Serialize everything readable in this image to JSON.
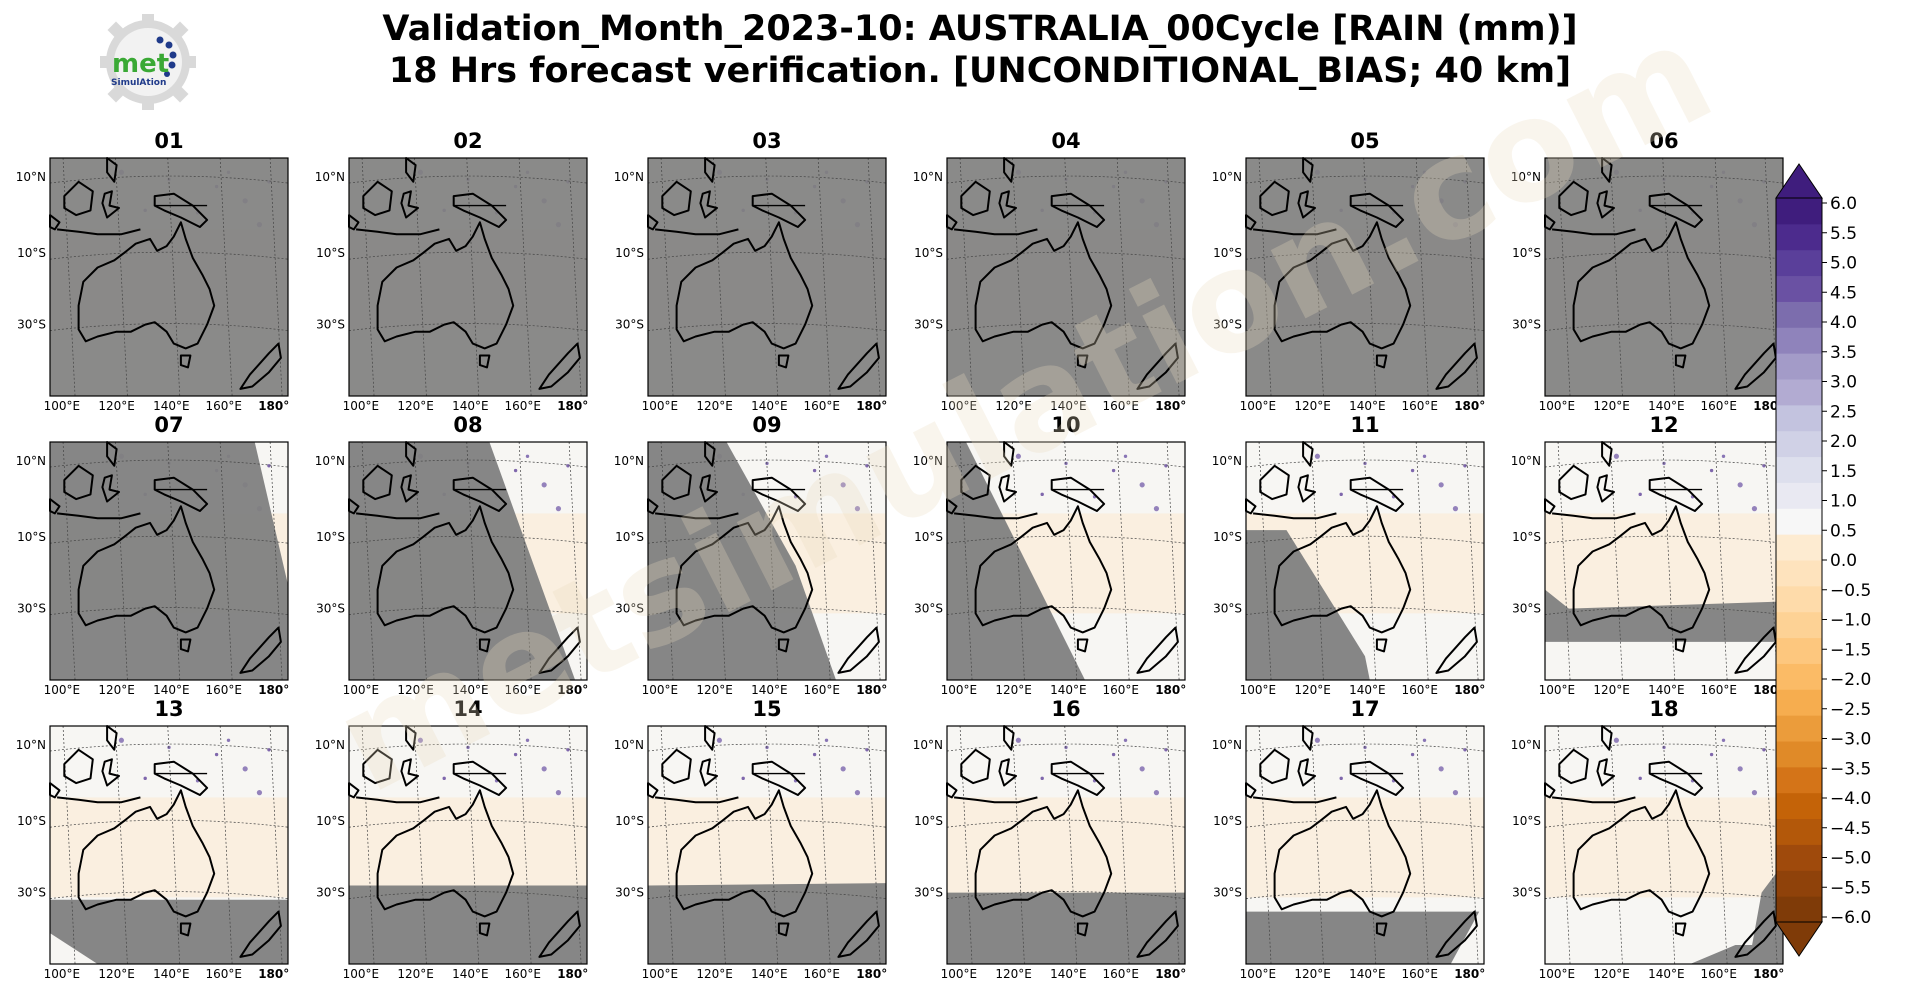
{
  "figure": {
    "title_line1": "Validation_Month_2023-10: AUSTRALIA_00Cycle [RAIN (mm)]",
    "title_line2": "18 Hrs forecast verification. [UNCONDITIONAL_BIAS; 40 km]",
    "logo_text": "met",
    "logo_subtext": "SimulAtion",
    "watermark": "metsimulation.com"
  },
  "colors": {
    "missing_gray": "#808080",
    "coast": "#000000",
    "grid": "#444444",
    "cmap": [
      "#7f3b08",
      "#8f420a",
      "#9f4a0c",
      "#b3580a",
      "#c46308",
      "#d47418",
      "#e08a28",
      "#eb9c3b",
      "#f6ad4f",
      "#fbbb66",
      "#fdc77e",
      "#fdd295",
      "#fedbaa",
      "#fee3bd",
      "#fdebd1",
      "#f7f7f7",
      "#e9e9f2",
      "#dddfed",
      "#d0d1e6",
      "#c3c3df",
      "#b2abd2",
      "#a39bc8",
      "#8f83bb",
      "#7c6dad",
      "#6a51a3",
      "#5a3f9a",
      "#4c2b8d",
      "#3f1d7d"
    ]
  },
  "chart_data": {
    "type": "heatmap",
    "variable": "RAIN (mm)",
    "score": "UNCONDITIONAL_BIAS",
    "resolution": "40 km",
    "panels": [
      {
        "label": "01",
        "day": 1,
        "missing_region": "full"
      },
      {
        "label": "02",
        "day": 2,
        "missing_region": "full"
      },
      {
        "label": "03",
        "day": 3,
        "missing_region": "full"
      },
      {
        "label": "04",
        "day": 4,
        "missing_region": "full"
      },
      {
        "label": "05",
        "day": 5,
        "missing_region": "full"
      },
      {
        "label": "06",
        "day": 6,
        "missing_region": "full"
      },
      {
        "label": "07",
        "day": 7,
        "missing_region": "all but east edge"
      },
      {
        "label": "08",
        "day": 8,
        "missing_region": "west of diagonal"
      },
      {
        "label": "09",
        "day": 9,
        "missing_region": "west of diagonal"
      },
      {
        "label": "10",
        "day": 10,
        "missing_region": "south-west triangle"
      },
      {
        "label": "11",
        "day": 11,
        "missing_region": "south-west triangle"
      },
      {
        "label": "12",
        "day": 12,
        "missing_region": "southern band"
      },
      {
        "label": "13",
        "day": 13,
        "missing_region": "south band"
      },
      {
        "label": "14",
        "day": 14,
        "missing_region": "south band"
      },
      {
        "label": "15",
        "day": 15,
        "missing_region": "south band"
      },
      {
        "label": "16",
        "day": 16,
        "missing_region": "south band"
      },
      {
        "label": "17",
        "day": 17,
        "missing_region": "south band"
      },
      {
        "label": "18",
        "day": 18,
        "missing_region": "south-east corner"
      }
    ],
    "y_ticks": [
      "10°N",
      "10°S",
      "30°S"
    ],
    "x_ticks": [
      "100°E",
      "120°E",
      "140°E",
      "160°E",
      "180°"
    ],
    "colorbar": {
      "ticks": [
        "6.0",
        "5.5",
        "5.0",
        "4.5",
        "4.0",
        "3.5",
        "3.0",
        "2.5",
        "2.0",
        "1.5",
        "1.0",
        "0.5",
        "0.0",
        "−0.5",
        "−1.0",
        "−1.5",
        "−2.0",
        "−2.5",
        "−3.0",
        "−3.5",
        "−4.0",
        "−4.5",
        "−5.0",
        "−5.5",
        "−6.0"
      ],
      "vmin": -6.0,
      "vmax": 6.0,
      "extend": "both"
    }
  }
}
